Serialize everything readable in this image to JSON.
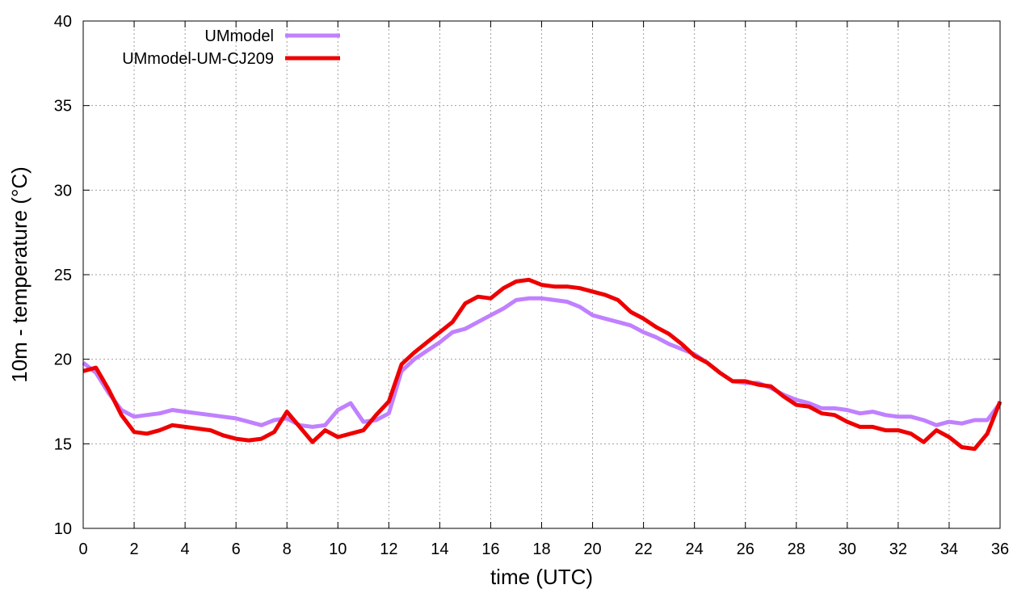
{
  "chart_data": {
    "type": "line",
    "title": "",
    "xlabel": "time (UTC)",
    "ylabel": "10m - temperature (°C)",
    "xlim": [
      0,
      36
    ],
    "ylim": [
      10,
      40
    ],
    "xticks": [
      0,
      2,
      4,
      6,
      8,
      10,
      12,
      14,
      16,
      18,
      20,
      22,
      24,
      26,
      28,
      30,
      32,
      34,
      36
    ],
    "yticks": [
      10,
      15,
      20,
      25,
      30,
      35,
      40
    ],
    "grid": true,
    "legend_position": "top-left",
    "series": [
      {
        "name": "UMmodel",
        "color": "#c080ff",
        "x": [
          0,
          0.5,
          1,
          1.5,
          2,
          2.5,
          3,
          3.5,
          4,
          4.5,
          5,
          5.5,
          6,
          6.5,
          7,
          7.5,
          8,
          8.5,
          9,
          9.5,
          10,
          10.5,
          11,
          11.5,
          12,
          12.5,
          13,
          13.5,
          14,
          14.5,
          15,
          15.5,
          16,
          16.5,
          17,
          17.5,
          18,
          18.5,
          19,
          19.5,
          20,
          20.5,
          21,
          21.5,
          22,
          22.5,
          23,
          23.5,
          24,
          24.5,
          25,
          25.5,
          26,
          26.5,
          27,
          27.5,
          28,
          28.5,
          29,
          29.5,
          30,
          30.5,
          31,
          31.5,
          32,
          32.5,
          33,
          33.5,
          34,
          34.5,
          35,
          35.5,
          36
        ],
        "y": [
          19.8,
          19.2,
          18.0,
          17.0,
          16.6,
          16.7,
          16.8,
          17.0,
          16.9,
          16.8,
          16.7,
          16.6,
          16.5,
          16.3,
          16.1,
          16.4,
          16.5,
          16.1,
          16.0,
          16.1,
          17.0,
          17.4,
          16.3,
          16.4,
          16.8,
          19.3,
          20.0,
          20.5,
          21.0,
          21.6,
          21.8,
          22.2,
          22.6,
          23.0,
          23.5,
          23.6,
          23.6,
          23.5,
          23.4,
          23.1,
          22.6,
          22.4,
          22.2,
          22.0,
          21.6,
          21.3,
          20.9,
          20.6,
          20.3,
          19.8,
          19.2,
          18.7,
          18.6,
          18.6,
          18.3,
          17.9,
          17.6,
          17.4,
          17.1,
          17.1,
          17.0,
          16.8,
          16.9,
          16.7,
          16.6,
          16.6,
          16.4,
          16.1,
          16.3,
          16.2,
          16.4,
          16.4,
          17.4
        ]
      },
      {
        "name": "UMmodel-UM-CJ209",
        "color": "#ee0000",
        "x": [
          0,
          0.5,
          1,
          1.5,
          2,
          2.5,
          3,
          3.5,
          4,
          4.5,
          5,
          5.5,
          6,
          6.5,
          7,
          7.5,
          8,
          8.5,
          9,
          9.5,
          10,
          10.5,
          11,
          11.5,
          12,
          12.5,
          13,
          13.5,
          14,
          14.5,
          15,
          15.5,
          16,
          16.5,
          17,
          17.5,
          18,
          18.5,
          19,
          19.5,
          20,
          20.5,
          21,
          21.5,
          22,
          22.5,
          23,
          23.5,
          24,
          24.5,
          25,
          25.5,
          26,
          26.5,
          27,
          27.5,
          28,
          28.5,
          29,
          29.5,
          30,
          30.5,
          31,
          31.5,
          32,
          32.5,
          33,
          33.5,
          34,
          34.5,
          35,
          35.5,
          36
        ],
        "y": [
          19.3,
          19.5,
          18.2,
          16.7,
          15.7,
          15.6,
          15.8,
          16.1,
          16.0,
          15.9,
          15.8,
          15.5,
          15.3,
          15.2,
          15.3,
          15.7,
          16.9,
          16.0,
          15.1,
          15.8,
          15.4,
          15.6,
          15.8,
          16.7,
          17.5,
          19.7,
          20.4,
          21.0,
          21.6,
          22.2,
          23.3,
          23.7,
          23.6,
          24.2,
          24.6,
          24.7,
          24.4,
          24.3,
          24.3,
          24.2,
          24.0,
          23.8,
          23.5,
          22.8,
          22.4,
          21.9,
          21.5,
          20.9,
          20.2,
          19.8,
          19.2,
          18.7,
          18.7,
          18.5,
          18.4,
          17.8,
          17.3,
          17.2,
          16.8,
          16.7,
          16.3,
          16.0,
          16.0,
          15.8,
          15.8,
          15.6,
          15.1,
          15.8,
          15.4,
          14.8,
          14.7,
          15.6,
          17.5
        ]
      }
    ]
  }
}
